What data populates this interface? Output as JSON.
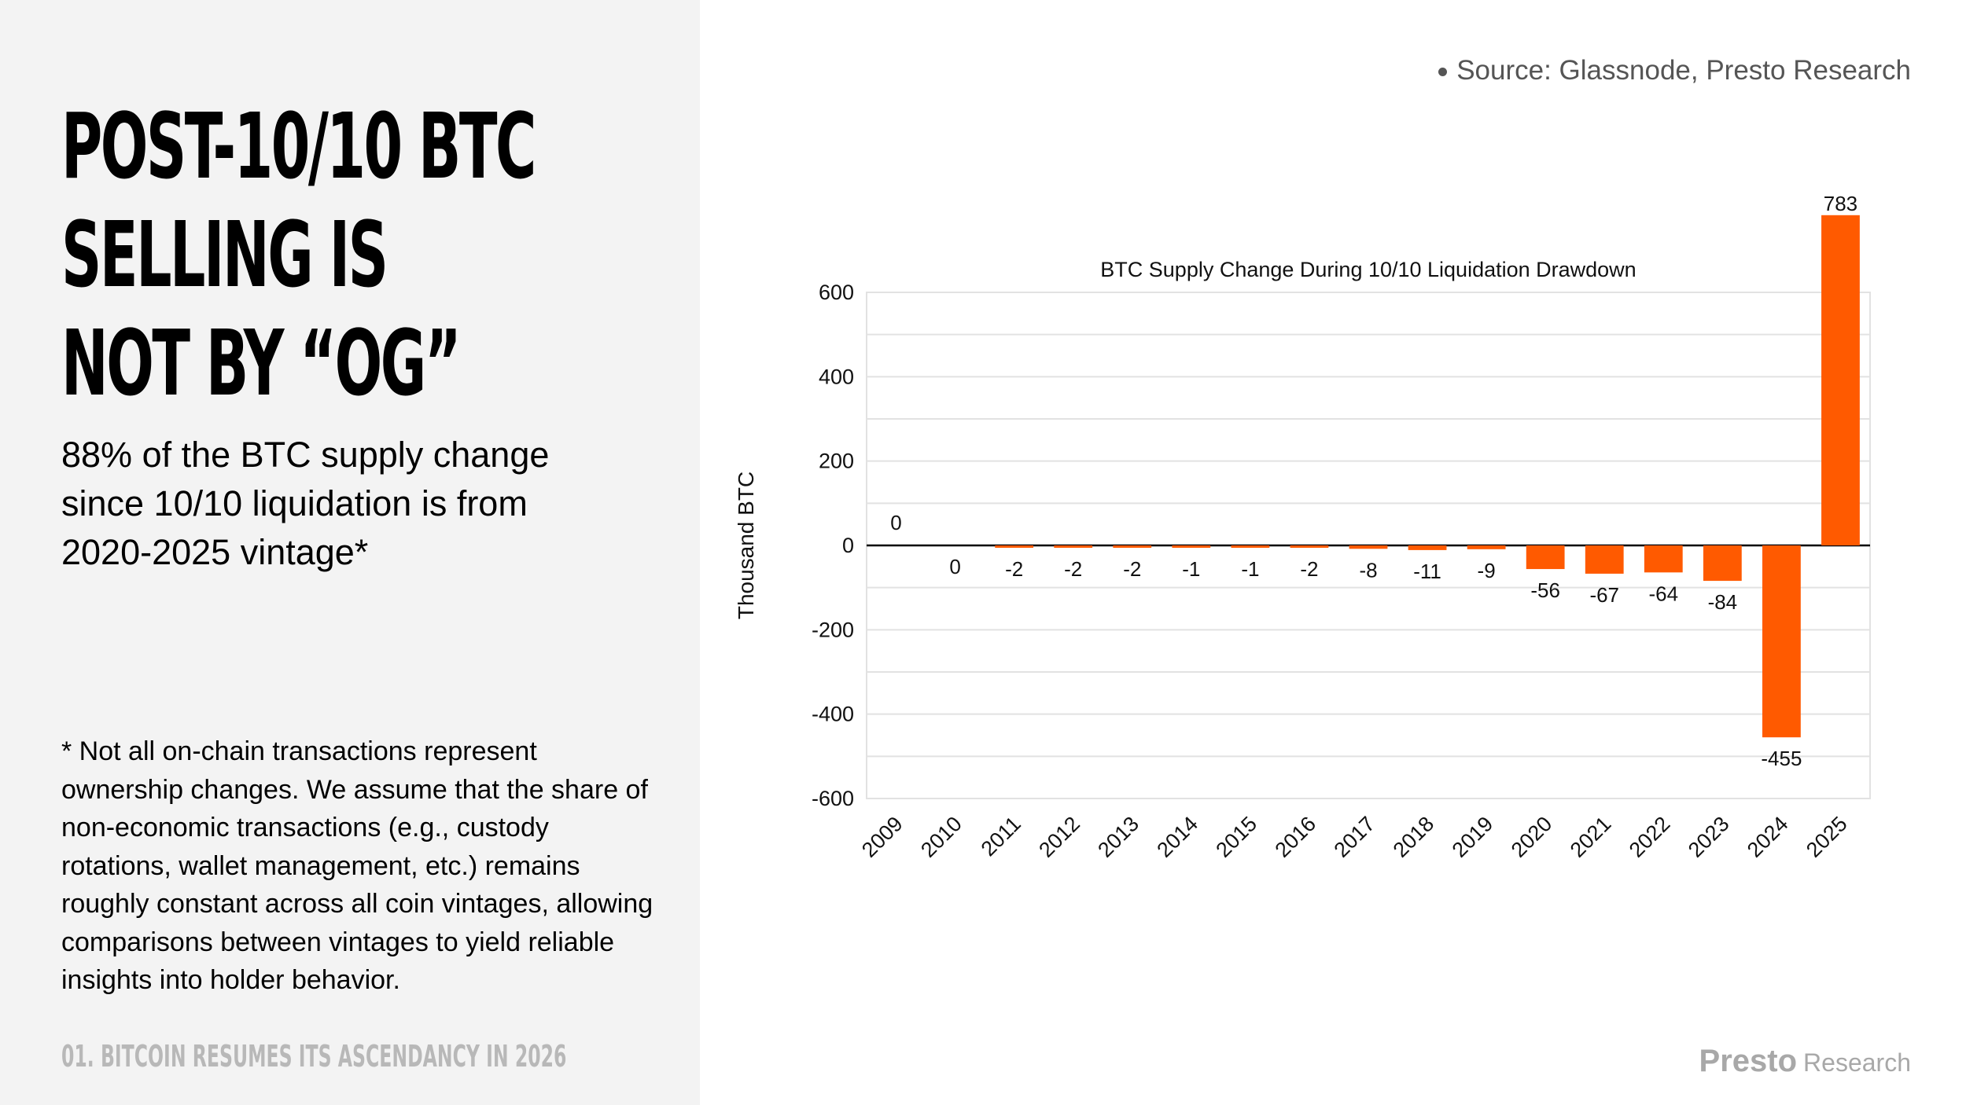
{
  "headline": {
    "line1": "POST-10/10 BTC",
    "line2": "SELLING IS",
    "line3": "NOT BY “OG”"
  },
  "subhead": "88% of the BTC supply change since 10/10 liquidation is from 2020-2025 vintage*",
  "footnote": "* Not all on-chain transactions represent ownership changes. We assume that the share of non-economic transactions (e.g., custody rotations, wallet management, etc.) remains roughly constant across all coin vintages, allowing comparisons between vintages to yield reliable insights into holder behavior.",
  "section_label": "01. BITCOIN RESUMES ITS ASCENDANCY IN 2026",
  "source": "Source: Glassnode, Presto Research",
  "brand": {
    "main": "Presto",
    "sub": "Research"
  },
  "colors": {
    "bar": "#ff5a00",
    "grid": "#e2e2e2",
    "panel": "#f3f3f3"
  },
  "chart_data": {
    "type": "bar",
    "title": "BTC Supply Change During 10/10 Liquidation Drawdown",
    "xlabel": "",
    "ylabel": "Thousand BTC",
    "ylim": [
      -600,
      600
    ],
    "yticks": [
      -600,
      -400,
      -200,
      0,
      200,
      400,
      600
    ],
    "grid": true,
    "categories": [
      "2009",
      "2010",
      "2011",
      "2012",
      "2013",
      "2014",
      "2015",
      "2016",
      "2017",
      "2018",
      "2019",
      "2020",
      "2021",
      "2022",
      "2023",
      "2024",
      "2025"
    ],
    "values": [
      0,
      0,
      -2,
      -2,
      -2,
      -1,
      -1,
      -2,
      -8,
      -11,
      -9,
      -56,
      -67,
      -64,
      -84,
      -455,
      783
    ],
    "data_labels": [
      "0",
      "0",
      "-2",
      "-2",
      "-2",
      "-1",
      "-1",
      "-2",
      "-8",
      "-11",
      "-9",
      "-56",
      "-67",
      "-64",
      "-84",
      "-455",
      "783"
    ]
  }
}
